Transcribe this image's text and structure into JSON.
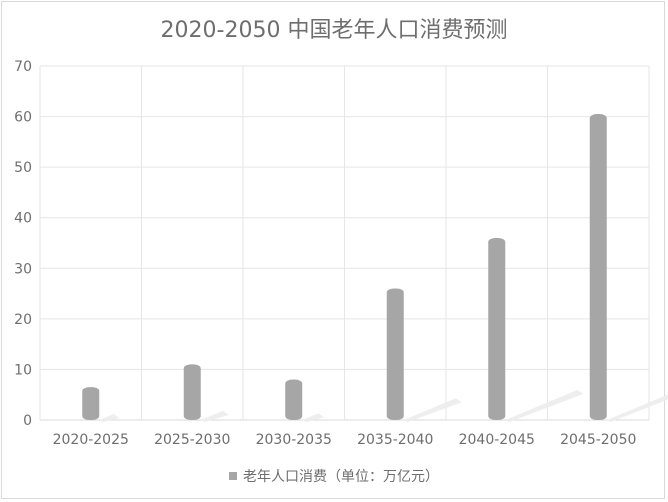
{
  "chart_data": {
    "type": "bar",
    "title": "2020-2050 中国老年人口消费预测",
    "categories": [
      "2020-2025",
      "2025-2030",
      "2030-2035",
      "2035-2040",
      "2040-2045",
      "2045-2050"
    ],
    "series": [
      {
        "name": "老年人口消费（单位：万亿元）",
        "values": [
          6.5,
          11,
          8,
          26,
          36,
          60.5
        ]
      }
    ],
    "yticks": [
      "0",
      "10",
      "20",
      "30",
      "40",
      "50",
      "60",
      "70"
    ],
    "ylim": [
      0,
      70
    ],
    "grid": true,
    "legend_position": "bottom",
    "colors": {
      "bar": "#a6a6a6",
      "grid": "#e6e6e6",
      "text": "#6e6e6e",
      "shadow": "#ececec"
    }
  }
}
